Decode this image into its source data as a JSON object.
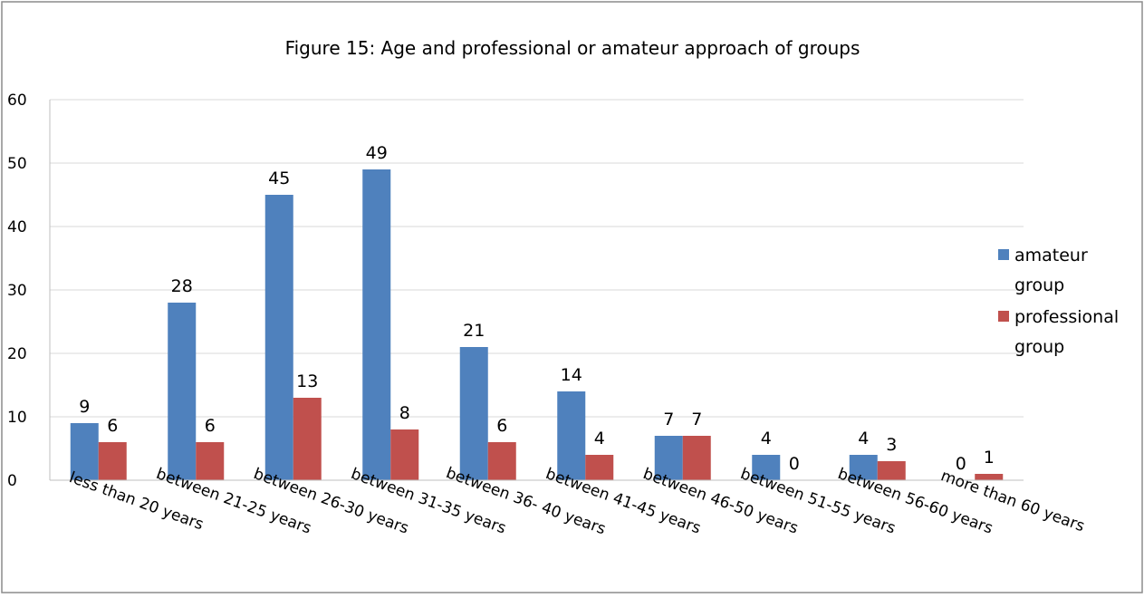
{
  "chart_data": {
    "type": "bar",
    "title": "Figure 15:  Age and professional or amateur approach of groups",
    "xlabel": "",
    "ylabel": "",
    "ylim": [
      0,
      60
    ],
    "yticks": [
      0,
      10,
      20,
      30,
      40,
      50,
      60
    ],
    "grid": true,
    "legend_position": "right",
    "categories": [
      "less than 20 years",
      "between 21-25 years",
      "between 26-30 years",
      "between 31-35 years",
      "between 36- 40 years",
      "between 41-45 years",
      "between 46-50 years",
      "between 51-55 years",
      "between 56-60 years",
      "more than 60 years"
    ],
    "series": [
      {
        "name": "amateur group",
        "color": "#4F81BD",
        "values": [
          9,
          28,
          45,
          49,
          21,
          14,
          7,
          4,
          4,
          0
        ]
      },
      {
        "name": "professional group",
        "color": "#C0504D",
        "values": [
          6,
          6,
          13,
          8,
          6,
          4,
          7,
          0,
          3,
          1
        ]
      }
    ],
    "legend_lines": [
      [
        "amateur",
        "group"
      ],
      [
        "professional",
        "group"
      ]
    ]
  }
}
